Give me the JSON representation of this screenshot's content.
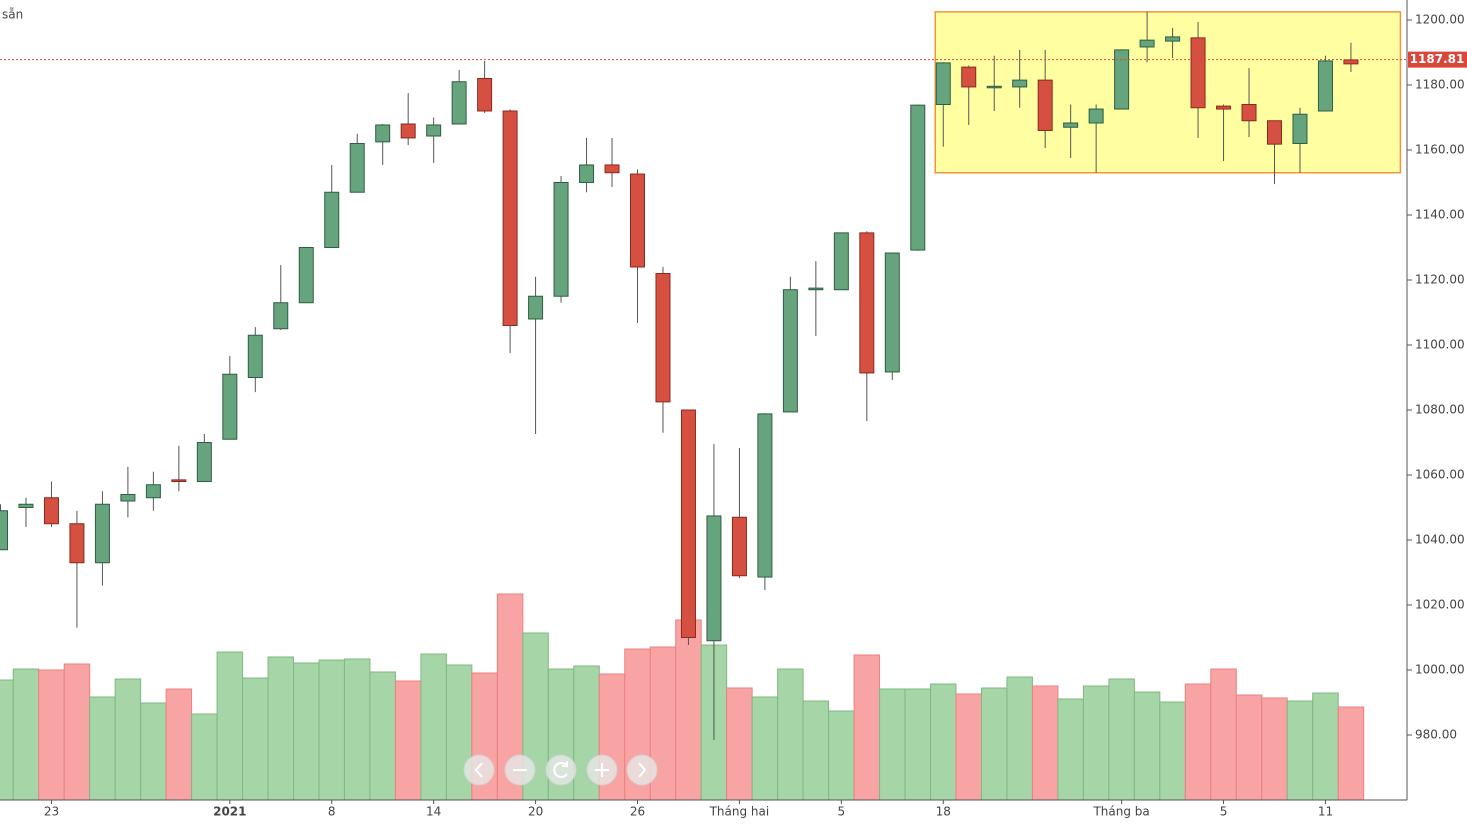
{
  "chart_data": {
    "type": "candlestick",
    "title": "sẵn",
    "categories": [
      null,
      null,
      "23",
      null,
      null,
      null,
      null,
      null,
      null,
      "2021",
      null,
      null,
      null,
      "8",
      null,
      null,
      null,
      "14",
      null,
      null,
      null,
      "20",
      null,
      null,
      null,
      "26",
      null,
      null,
      null,
      "Tháng hai",
      null,
      null,
      null,
      "5",
      null,
      null,
      null,
      "18",
      null,
      null,
      null,
      null,
      null,
      null,
      "Tháng ba",
      null,
      null,
      null,
      "5",
      null,
      null,
      null,
      "11",
      null
    ],
    "bold_categories": [
      "2021"
    ],
    "open": [
      1037,
      1050,
      1053,
      1045,
      1033,
      1052,
      1053,
      1058.5,
      1058,
      1071,
      1090,
      1105,
      1113,
      1130,
      1147,
      1162.5,
      1168,
      1164.3,
      1168,
      1182,
      1172,
      1108,
      1115,
      1150,
      1155.4,
      1152.6,
      1122,
      1080,
      1009,
      1047,
      1028.6,
      1079.4,
      1117,
      1117,
      1134.5,
      1091.7,
      1129.2,
      1174,
      1185.5,
      1179.4,
      1179.4,
      1181.5,
      1167,
      1168.3,
      1172.6,
      1191.7,
      1193.5,
      1194.5,
      1173.5,
      1174,
      1169,
      1162,
      1172,
      1187.7
    ],
    "high": [
      1051,
      1053,
      1058,
      1049,
      1055,
      1062.5,
      1061,
      1069,
      1072.6,
      1096.6,
      1105.5,
      1124.6,
      1130,
      1155.4,
      1165,
      1168,
      1177.5,
      1170,
      1184.6,
      1187.4,
      1172.5,
      1121,
      1152,
      1163.7,
      1163.7,
      1154,
      1124,
      1080,
      1069.5,
      1068.3,
      1079,
      1121,
      1125.8,
      1134.5,
      1135,
      1128.3,
      1174,
      1187,
      1186,
      1189,
      1190.8,
      1190.8,
      1174,
      1174,
      1191,
      1202.5,
      1197.5,
      1199.4,
      1174,
      1185.2,
      1169,
      1173,
      1189,
      1193
    ],
    "low": [
      1037,
      1044,
      1044,
      1013,
      1026,
      1047,
      1049,
      1055,
      1058,
      1071,
      1085.5,
      1104.6,
      1113,
      1130,
      1147,
      1155.4,
      1161.5,
      1156,
      1168,
      1171.4,
      1097.5,
      1072.6,
      1113,
      1147,
      1148.6,
      1106.8,
      1073,
      1007.7,
      978.5,
      1028.3,
      1024.6,
      1079.4,
      1102.8,
      1117,
      1076.6,
      1089.2,
      1129,
      1161,
      1167.7,
      1172,
      1173,
      1160.6,
      1157.5,
      1153,
      1172.6,
      1187,
      1188.3,
      1163.7,
      1156.6,
      1164,
      1149.5,
      1153,
      1172,
      1184
    ],
    "close": [
      1049,
      1051,
      1045,
      1033,
      1051,
      1054,
      1057,
      1058,
      1070,
      1091,
      1103,
      1113,
      1130,
      1147,
      1162,
      1167.7,
      1163.7,
      1167.7,
      1181,
      1172,
      1106,
      1115,
      1150,
      1155.4,
      1153,
      1124,
      1082.5,
      1010,
      1047.4,
      1029,
      1078.8,
      1117,
      1117.5,
      1134.5,
      1091.4,
      1128.3,
      1173.8,
      1186.8,
      1179.4,
      1179.6,
      1181.5,
      1166,
      1168.3,
      1172.6,
      1190.8,
      1193.8,
      1194.8,
      1173,
      1172.6,
      1169,
      1161.8,
      1171,
      1187.4,
      1186.5
    ],
    "volume": [
      120,
      131,
      130,
      136,
      103,
      121,
      97,
      111,
      86,
      148,
      122,
      143,
      137,
      140,
      141,
      128,
      119,
      146,
      135,
      127,
      206,
      167,
      131,
      134,
      126,
      151,
      153,
      180,
      155,
      112,
      103,
      131,
      99,
      89,
      145,
      111,
      111,
      116,
      106,
      112,
      123,
      114,
      101,
      114,
      121,
      108,
      98,
      116,
      131,
      105,
      102,
      99,
      107,
      93
    ],
    "volume_lim": [
      0,
      800
    ],
    "up_color": "#65a47c",
    "down_color": "#d55040",
    "volume_up_color": "#a6d5a7",
    "volume_down_color": "#f9a4a4",
    "ylim": [
      960,
      1206.15
    ],
    "yticks": [
      {
        "value": 980,
        "label": "980.00"
      },
      {
        "value": 1000,
        "label": "1000.00"
      },
      {
        "value": 1020,
        "label": "1020.00"
      },
      {
        "value": 1040,
        "label": "1040.00"
      },
      {
        "value": 1060,
        "label": "1060.00"
      },
      {
        "value": 1080,
        "label": "1080.00"
      },
      {
        "value": 1100,
        "label": "1100.00"
      },
      {
        "value": 1120,
        "label": "1120.00"
      },
      {
        "value": 1140,
        "label": "1140.00"
      },
      {
        "value": 1160,
        "label": "1160.00"
      },
      {
        "value": 1180,
        "label": "1180.00"
      },
      {
        "value": 1200,
        "label": "1200.00"
      }
    ],
    "last_price": 1187.81,
    "highlight": {
      "from": 37,
      "to": 54,
      "ylim": [
        1153,
        1202.5
      ],
      "color": "#ffff99",
      "border": "#f08a24"
    }
  }
}
